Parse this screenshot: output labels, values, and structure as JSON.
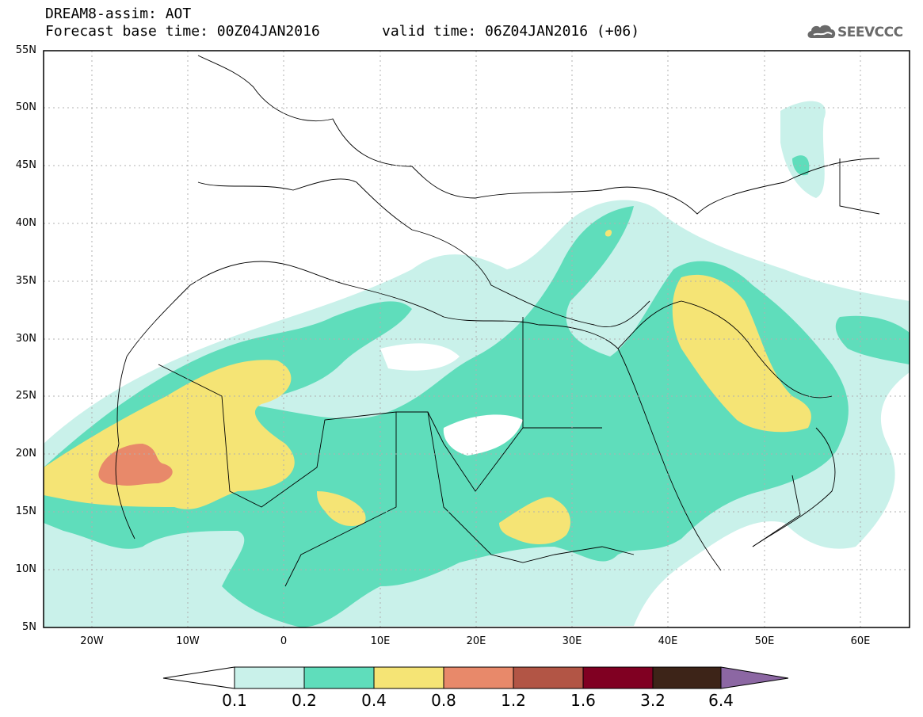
{
  "header": {
    "title": "DREAM8-assim: AOT",
    "base_time": "Forecast base time: 00Z04JAN2016",
    "valid_time": "valid time: 06Z04JAN2016 (+06)",
    "logo_text": "SEEVCCC"
  },
  "map": {
    "lat_labels": [
      "55N",
      "50N",
      "45N",
      "40N",
      "35N",
      "30N",
      "25N",
      "20N",
      "15N",
      "10N",
      "5N"
    ],
    "lon_labels": [
      "20W",
      "10W",
      "0",
      "10E",
      "20E",
      "30E",
      "40E",
      "50E",
      "60E"
    ]
  },
  "colorbar": {
    "labels": [
      "0.1",
      "0.2",
      "0.4",
      "0.8",
      "1.2",
      "1.6",
      "3.2",
      "6.4"
    ],
    "colors": [
      "#ffffff",
      "#c9f1ea",
      "#5fddbb",
      "#f5e475",
      "#e8896a",
      "#b25545",
      "#800022",
      "#3d2418",
      "#8c67a3"
    ]
  },
  "colors": {
    "level1": "#c9f1ea",
    "level2": "#5fddbb",
    "level3": "#f5e475",
    "level4": "#e8896a"
  }
}
